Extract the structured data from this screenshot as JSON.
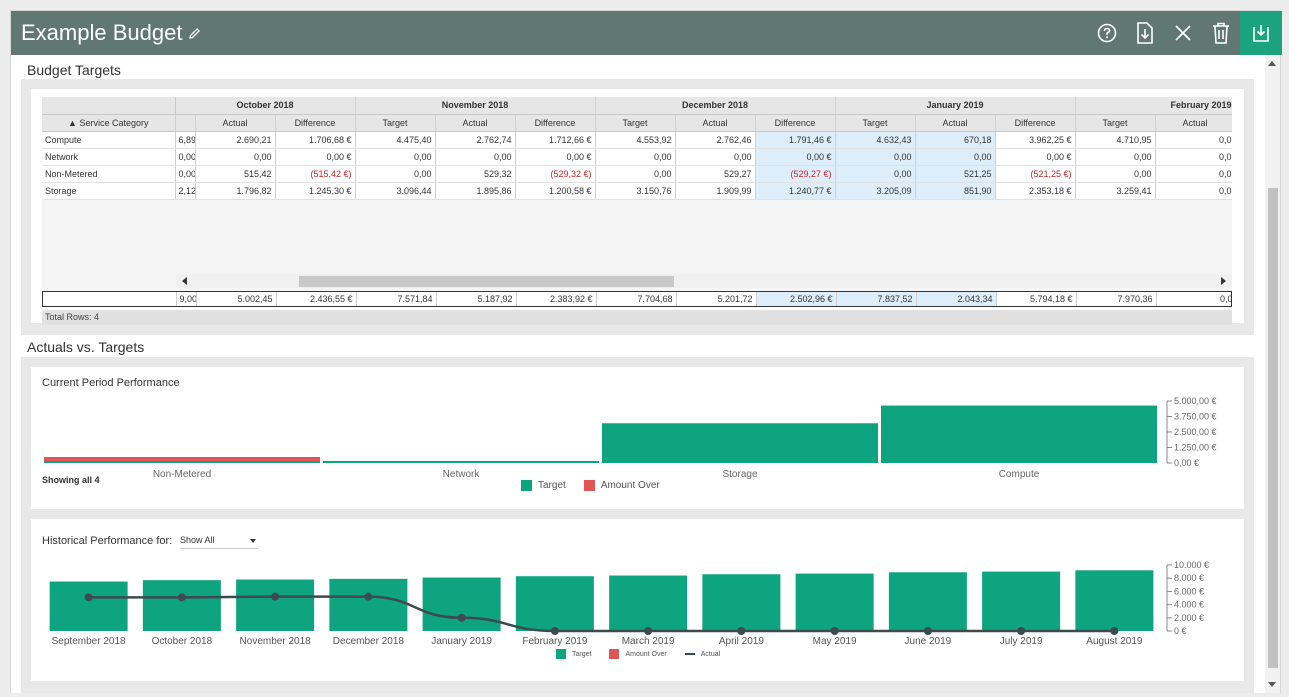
{
  "header": {
    "title": "Example Budget"
  },
  "sections": {
    "budget_targets": "Budget Targets",
    "actuals_vs_targets": "Actuals vs. Targets"
  },
  "table": {
    "sort_header": "▲ Service Category",
    "months": [
      "October 2018",
      "November 2018",
      "December 2018",
      "January 2019",
      "February 2019"
    ],
    "sub_headers": {
      "first": [
        "Actual",
        "Difference"
      ],
      "full": [
        "Target",
        "Actual",
        "Difference"
      ],
      "last": [
        "Target",
        "Actual"
      ]
    },
    "rows": [
      {
        "category": "Compute",
        "cells": [
          "6,89",
          "2.690,21",
          "1.706,68 €",
          "4.475,40",
          "2.762,74",
          "1.712,66 €",
          "4.553,92",
          "2.762,46",
          "1.791,46 €",
          "4.632,43",
          "670,18",
          "3.962,25 €",
          "4.710,95",
          "0,0"
        ]
      },
      {
        "category": "Network",
        "cells": [
          "0,00",
          "0,00",
          "0,00 €",
          "0,00",
          "0,00",
          "0,00 €",
          "0,00",
          "0,00",
          "0,00 €",
          "0,00",
          "0,00",
          "0,00 €",
          "0,00",
          "0,0"
        ]
      },
      {
        "category": "Non-Metered",
        "cells": [
          "0,00",
          "515,42",
          "(515,42 €)",
          "0,00",
          "529,32",
          "(529,32 €)",
          "0,00",
          "529,27",
          "(529,27 €)",
          "0,00",
          "521,25",
          "(521,25 €)",
          "0,00",
          "0,0"
        ]
      },
      {
        "category": "Storage",
        "cells": [
          "2,12",
          "1.796,82",
          "1.245,30 €",
          "3.096,44",
          "1.895,86",
          "1.200,58 €",
          "3.150,76",
          "1.909,99",
          "1.240,77 €",
          "3.205,09",
          "851,90",
          "2.353,18 €",
          "3.259,41",
          "0,0"
        ]
      }
    ],
    "totals": [
      "9,00",
      "5.002,45",
      "2.436,55 €",
      "7.571,84",
      "5.187,92",
      "2.383,92 €",
      "7.704,68",
      "5.201,72",
      "2.502,96 €",
      "7.837,52",
      "2.043,34",
      "5.794,18 €",
      "7.970,36",
      "0,0"
    ],
    "total_rows": "Total Rows: 4"
  },
  "current_chart": {
    "title": "Current Period Performance",
    "showing": "Showing all 4",
    "legend": [
      "Target",
      "Amount Over"
    ]
  },
  "history_chart": {
    "label": "Historical Performance for:",
    "dropdown_value": "Show All",
    "legend": [
      "Target",
      "Amount Over",
      "Actual"
    ]
  },
  "colors": {
    "header": "#617872",
    "accent": "#1aa37e",
    "target": "#0ea47f",
    "over": "#e05555",
    "actual_line": "#3d4a4f",
    "highlight": "#ddeefa"
  },
  "icons": [
    "pencil-icon",
    "help-icon",
    "export-icon",
    "close-icon",
    "trash-icon",
    "save-icon"
  ],
  "chart_data": [
    {
      "type": "bar",
      "title": "Current Period Performance",
      "categories": [
        "Non-Metered",
        "Network",
        "Storage",
        "Compute"
      ],
      "series": [
        {
          "name": "Target",
          "values": [
            0,
            0,
            3205.09,
            4632.43
          ]
        },
        {
          "name": "Amount Over",
          "values": [
            521.25,
            0,
            0,
            0
          ]
        }
      ],
      "ylim": [
        0,
        5000
      ],
      "yticks": [
        "0,00 €",
        "1.250,00 €",
        "2.500,00 €",
        "3.750,00 €",
        "5.000,00 €"
      ]
    },
    {
      "type": "bar",
      "title": "Historical Performance for:",
      "categories": [
        "September 2018",
        "October 2018",
        "November 2018",
        "December 2018",
        "January 2019",
        "February 2019",
        "March 2019",
        "April 2019",
        "May 2019",
        "June 2019",
        "July 2019",
        "August 2019"
      ],
      "series": [
        {
          "name": "Target",
          "values": [
            7500,
            7700,
            7800,
            7900,
            8100,
            8300,
            8400,
            8600,
            8700,
            8900,
            9000,
            9200
          ]
        },
        {
          "name": "Actual",
          "type": "line",
          "values": [
            5100,
            5100,
            5200,
            5200,
            2000,
            0,
            0,
            0,
            0,
            0,
            0,
            0
          ]
        }
      ],
      "ylim": [
        0,
        10000
      ],
      "yticks": [
        "0 €",
        "2.000 €",
        "4.000 €",
        "6.000 €",
        "8.000 €",
        "10.000 €"
      ]
    }
  ]
}
